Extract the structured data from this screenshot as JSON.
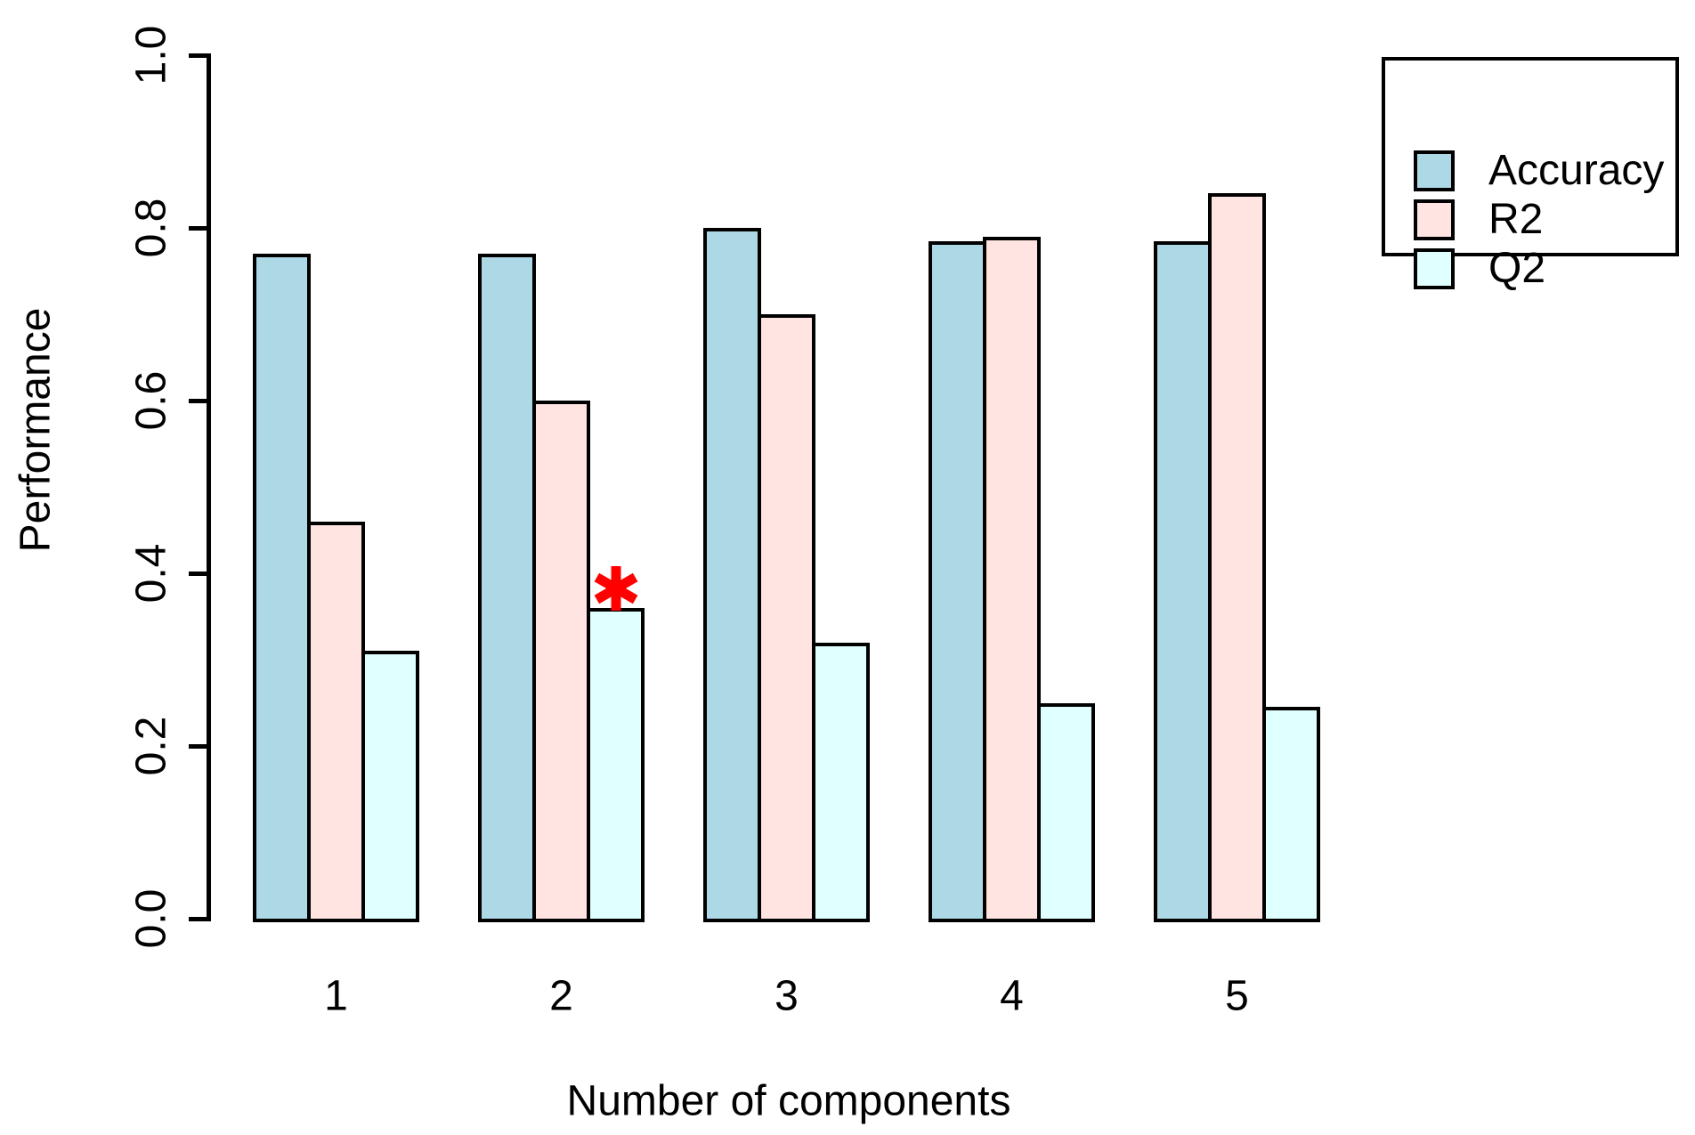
{
  "chart_data": {
    "type": "bar",
    "title": "",
    "categories": [
      "1",
      "2",
      "3",
      "4",
      "5"
    ],
    "series": [
      {
        "name": "Accuracy",
        "color": "#ADD8E6",
        "values": [
          0.77,
          0.77,
          0.8,
          0.785,
          0.785
        ]
      },
      {
        "name": "R2",
        "color": "#FFE4E1",
        "values": [
          0.46,
          0.6,
          0.7,
          0.79,
          0.84
        ]
      },
      {
        "name": "Q2",
        "color": "#E0FFFF",
        "values": [
          0.31,
          0.36,
          0.32,
          0.25,
          0.245
        ]
      }
    ],
    "xlabel": "Number of components",
    "ylabel": "Performance",
    "ylim": [
      0.0,
      1.0
    ],
    "ytick_labels": [
      "0.0",
      "0.2",
      "0.4",
      "0.6",
      "0.8",
      "1.0"
    ],
    "grid": false,
    "legend_position": "top-right",
    "bar_border_color": "#000000",
    "annotation": {
      "text": "*",
      "color": "#FF0000",
      "series": "Q2",
      "category": "2",
      "meaning": "significance marker above Q2 bar at 2 components"
    }
  },
  "legend": {
    "items": [
      {
        "label": "Accuracy"
      },
      {
        "label": "R2"
      },
      {
        "label": "Q2"
      }
    ]
  },
  "colors": {
    "axis": "#000000",
    "background": "#FFFFFF"
  }
}
